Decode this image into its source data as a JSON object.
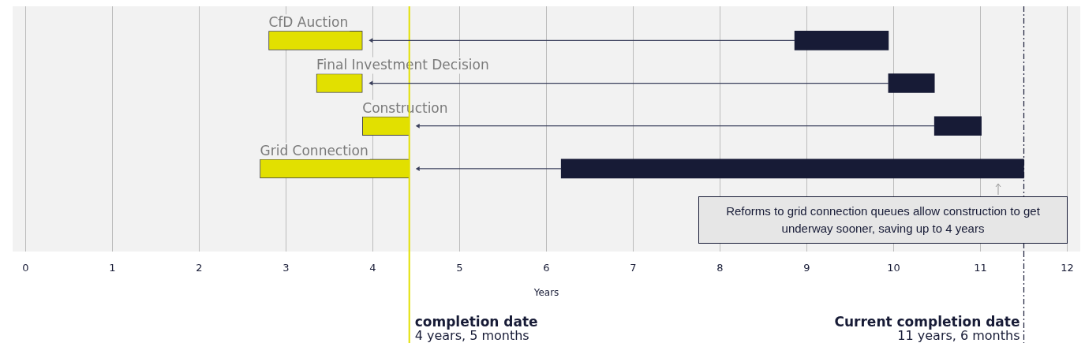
{
  "chart_data": {
    "type": "bar",
    "orientation": "horizontal",
    "categories": [
      "CfD Auction",
      "Final Investment Decision",
      "Construction",
      "Grid Connection"
    ],
    "series": [
      {
        "color": "#e2e000",
        "base": [
          2.8,
          3.35,
          3.88,
          2.7
        ],
        "values": [
          1.08,
          0.53,
          0.54,
          1.72
        ]
      },
      {
        "color": "#171b36",
        "base": [
          8.86,
          9.94,
          10.47,
          6.17
        ],
        "values": [
          1.08,
          0.53,
          0.54,
          5.33
        ]
      }
    ],
    "xlim": [
      -0.15,
      12.15
    ],
    "xticks": [
      0,
      1,
      2,
      3,
      4,
      5,
      6,
      7,
      8,
      9,
      10,
      11,
      12
    ],
    "xlabel": "Years",
    "grid": "x",
    "legend": false,
    "tick_labels": "x",
    "ref_lines": [
      {
        "axis": "x",
        "value": 4.42,
        "label": "completion date",
        "color": "#e2e000"
      },
      {
        "axis": "x",
        "value": 11.5,
        "label": "Current completion date",
        "color": "#171b36",
        "line_style": "dashed"
      }
    ],
    "annotations": [
      "4 years, 5 months",
      "11 years, 6 months",
      "Reforms to grid connection queues allow construction to get underway sooner, saving up to 4 years"
    ]
  }
}
